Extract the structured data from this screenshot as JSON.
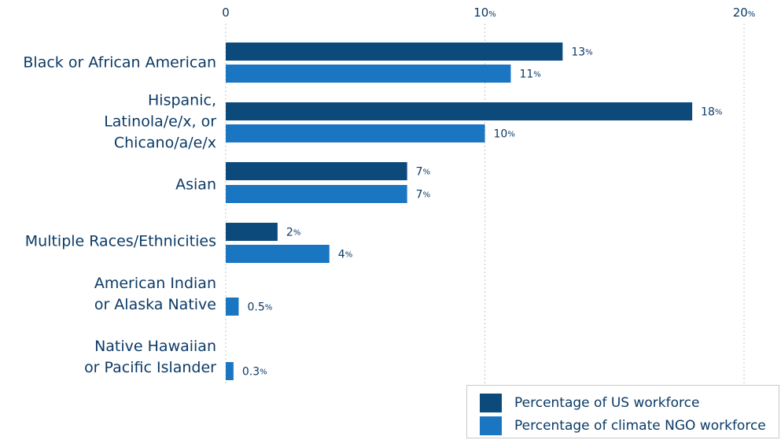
{
  "chart_data": {
    "type": "bar",
    "orientation": "horizontal",
    "categories": [
      [
        "Black or African American"
      ],
      [
        "Hispanic,",
        "Latinola/e/x, or",
        "Chicano/a/e/x"
      ],
      [
        "Asian"
      ],
      [
        "Multiple Races/Ethnicities"
      ],
      [
        "American Indian",
        "or Alaska Native"
      ],
      [
        "Native Hawaiian",
        "or Pacific Islander"
      ]
    ],
    "series": [
      {
        "name": "Percentage of US workforce",
        "color": "#0c4a7c",
        "values": [
          13,
          18,
          7,
          2,
          null,
          null
        ],
        "labels": [
          "13",
          "18",
          "7",
          "2",
          "",
          ""
        ]
      },
      {
        "name": "Percentage of climate NGO workforce",
        "color": "#1b76c2",
        "values": [
          11,
          10,
          7,
          4,
          0.5,
          0.3
        ],
        "labels": [
          "11",
          "10",
          "7",
          "4",
          "0.5",
          "0.3"
        ]
      }
    ],
    "xlim": [
      0,
      20
    ],
    "xticks": [
      {
        "value": 0,
        "label": "0",
        "pct": ""
      },
      {
        "value": 10,
        "label": "10",
        "pct": "%"
      },
      {
        "value": 20,
        "label": "20",
        "pct": "%"
      }
    ],
    "value_suffix": "%",
    "grid": "vertical dotted",
    "legend_position": "bottom-right"
  }
}
